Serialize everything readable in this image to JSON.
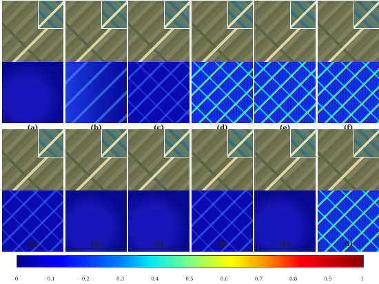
{
  "panels": [
    {
      "label": "(a)",
      "error_level": "low"
    },
    {
      "label": "(b)",
      "error_level": "bright"
    },
    {
      "label": "(c)",
      "error_level": "mid"
    },
    {
      "label": "(d)",
      "error_level": "high"
    },
    {
      "label": "(e)",
      "error_level": "high"
    },
    {
      "label": "(f)",
      "error_level": "high"
    },
    {
      "label": "(g)",
      "error_level": "mid"
    },
    {
      "label": "(h)",
      "error_level": "low"
    },
    {
      "label": "(i)",
      "error_level": "low"
    },
    {
      "label": "(j)",
      "error_level": "mid"
    },
    {
      "label": "(k)",
      "error_level": "low"
    },
    {
      "label": "(l)",
      "error_level": "high"
    }
  ],
  "colorbar": {
    "ticks": [
      "0",
      "0.1",
      "0.2",
      "0.3",
      "0.4",
      "0.5",
      "0.6",
      "0.7",
      "0.8",
      "0.9",
      "1"
    ],
    "colors": [
      "#00008b",
      "#0000ff",
      "#00e5ff",
      "#ffff00",
      "#ff0000",
      "#8b0000"
    ]
  }
}
